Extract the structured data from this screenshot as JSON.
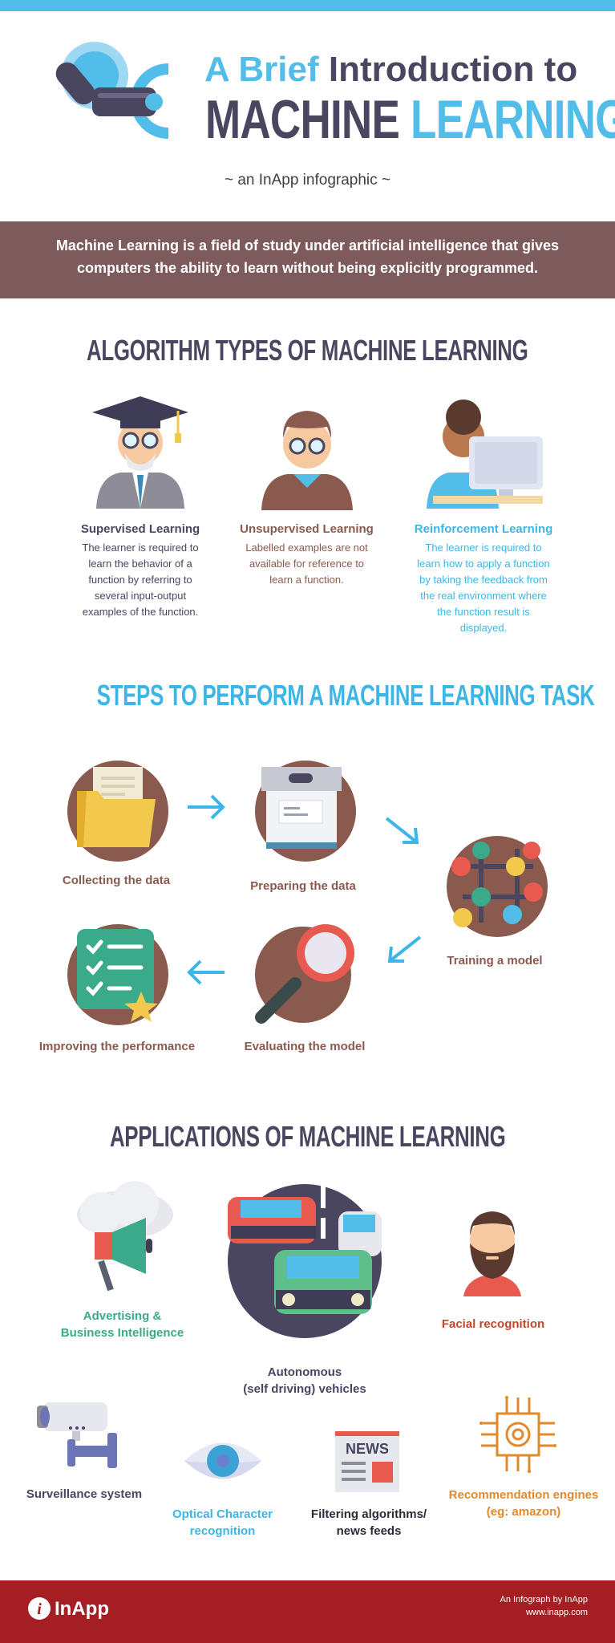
{
  "header": {
    "title_line1_highlight": "A Brief",
    "title_line1_rest": " Introduction to",
    "title_line2_dark": "MACHINE ",
    "title_line2_highlight": "LEARNING",
    "subtitle": "~ an InApp infographic ~"
  },
  "definition": "Machine Learning is a field of study under artificial intelligence that gives computers the ability to learn without being explicitly programmed.",
  "algorithm_section": {
    "heading": "ALGORITHM TYPES OF MACHINE LEARNING",
    "types": [
      {
        "title": "Supervised Learning",
        "description": "The learner is required to learn the behavior of a function by referring to several input-output examples of the function.",
        "icon": "professor-icon"
      },
      {
        "title": "Unsupervised Learning",
        "description": "Labelled examples are not available for reference to learn a function.",
        "icon": "student-icon"
      },
      {
        "title": "Reinforcement Learning",
        "description": "The learner is required to learn how to apply a function by taking the feedback from the real environment where the function result is displayed.",
        "icon": "computer-user-icon"
      }
    ]
  },
  "steps_section": {
    "heading": "STEPS TO PERFORM A MACHINE LEARNING TASK",
    "steps": [
      {
        "label": "Collecting the data",
        "icon": "folder-icon"
      },
      {
        "label": "Preparing the data",
        "icon": "archive-box-icon"
      },
      {
        "label": "Training a model",
        "icon": "network-graph-icon"
      },
      {
        "label": "Evaluating the model",
        "icon": "magnifier-icon"
      },
      {
        "label": "Improving the performance",
        "icon": "checklist-star-icon"
      }
    ]
  },
  "applications_section": {
    "heading": "APPLICATIONS OF MACHINE LEARNING",
    "apps": [
      {
        "label_line1": "Advertising &",
        "label_line2": "Business Intelligence",
        "icon": "megaphone-cloud-icon"
      },
      {
        "label_line1": "Autonomous",
        "label_line2": "(self driving) vehicles",
        "icon": "cars-road-icon"
      },
      {
        "label_line1": "Facial recognition",
        "label_line2": "",
        "icon": "bearded-face-icon"
      },
      {
        "label_line1": "Surveillance system",
        "label_line2": "",
        "icon": "security-camera-icon"
      },
      {
        "label_line1": "Optical Character",
        "label_line2": "recognition",
        "icon": "eye-icon"
      },
      {
        "label_line1": "Filtering algorithms/",
        "label_line2": "news feeds",
        "icon": "newspaper-icon",
        "icon_text": "NEWS"
      },
      {
        "label_line1": "Recommendation engines",
        "label_line2": "(eg: amazon)",
        "icon": "chip-gear-icon"
      }
    ]
  },
  "footer": {
    "logo_text": "InApp",
    "credit_line1": "An Infograph by InApp",
    "credit_line2": "www.inapp.com"
  },
  "colors": {
    "blue": "#53bde9",
    "dark": "#4a4660",
    "brown": "#7d5a5b",
    "step_label": "#8a5a4e",
    "footer_red": "#a51e24",
    "green_label": "#3aaa8a",
    "orange_label": "#e08a2c",
    "red_label": "#c0472b"
  }
}
